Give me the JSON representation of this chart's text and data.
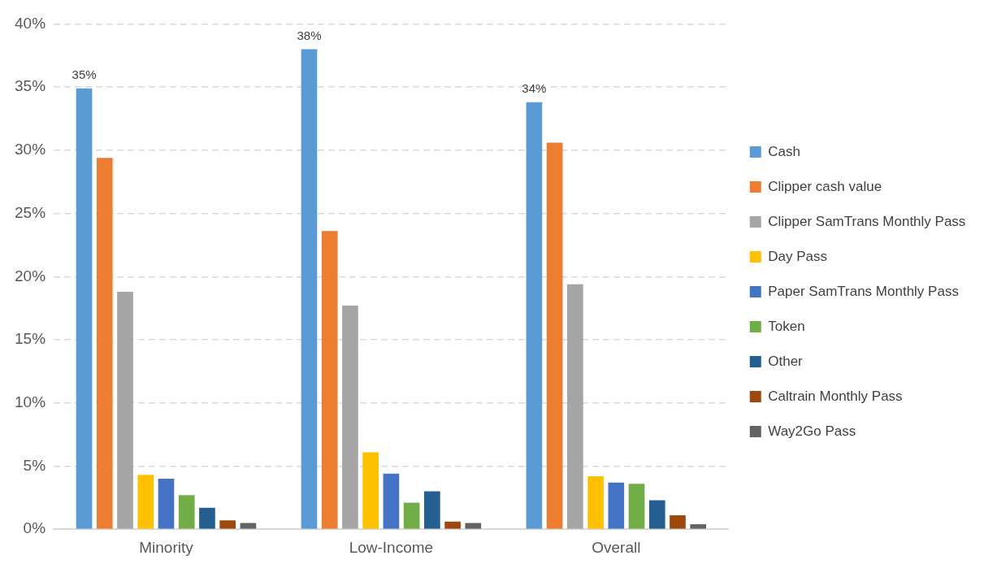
{
  "chart_data": {
    "type": "bar",
    "categories": [
      "Minority",
      "Low-Income",
      "Overall"
    ],
    "series": [
      {
        "name": "Cash",
        "color": "#5b9bd5",
        "values": [
          34.9,
          38.0,
          33.8
        ],
        "value_labels": [
          "35%",
          "38%",
          "34%"
        ]
      },
      {
        "name": "Clipper cash value",
        "color": "#ed7d31",
        "values": [
          29.4,
          23.6,
          30.6
        ]
      },
      {
        "name": "Clipper SamTrans Monthly Pass",
        "color": "#a5a5a5",
        "values": [
          18.8,
          17.7,
          19.4
        ]
      },
      {
        "name": "Day Pass",
        "color": "#ffc000",
        "values": [
          4.3,
          6.1,
          4.2
        ]
      },
      {
        "name": "Paper SamTrans Monthly Pass",
        "color": "#4472c4",
        "values": [
          4.0,
          4.4,
          3.7
        ]
      },
      {
        "name": "Token",
        "color": "#70ad47",
        "values": [
          2.7,
          2.1,
          3.6
        ]
      },
      {
        "name": "Other",
        "color": "#255e91",
        "values": [
          1.7,
          3.0,
          2.3
        ]
      },
      {
        "name": "Caltrain Monthly Pass",
        "color": "#9e480e",
        "values": [
          0.7,
          0.6,
          1.1
        ]
      },
      {
        "name": "Way2Go Pass",
        "color": "#636363",
        "values": [
          0.5,
          0.5,
          0.4
        ]
      }
    ],
    "ylim": [
      0,
      40
    ],
    "yticks": [
      {
        "value": 0,
        "label": "0%"
      },
      {
        "value": 5,
        "label": "5%"
      },
      {
        "value": 10,
        "label": "10%"
      },
      {
        "value": 15,
        "label": "15%"
      },
      {
        "value": 20,
        "label": "20%"
      },
      {
        "value": 25,
        "label": "25%"
      },
      {
        "value": 30,
        "label": "30%"
      },
      {
        "value": 35,
        "label": "35%"
      },
      {
        "value": 40,
        "label": "40%"
      }
    ],
    "grid": "y",
    "legend": "right"
  }
}
